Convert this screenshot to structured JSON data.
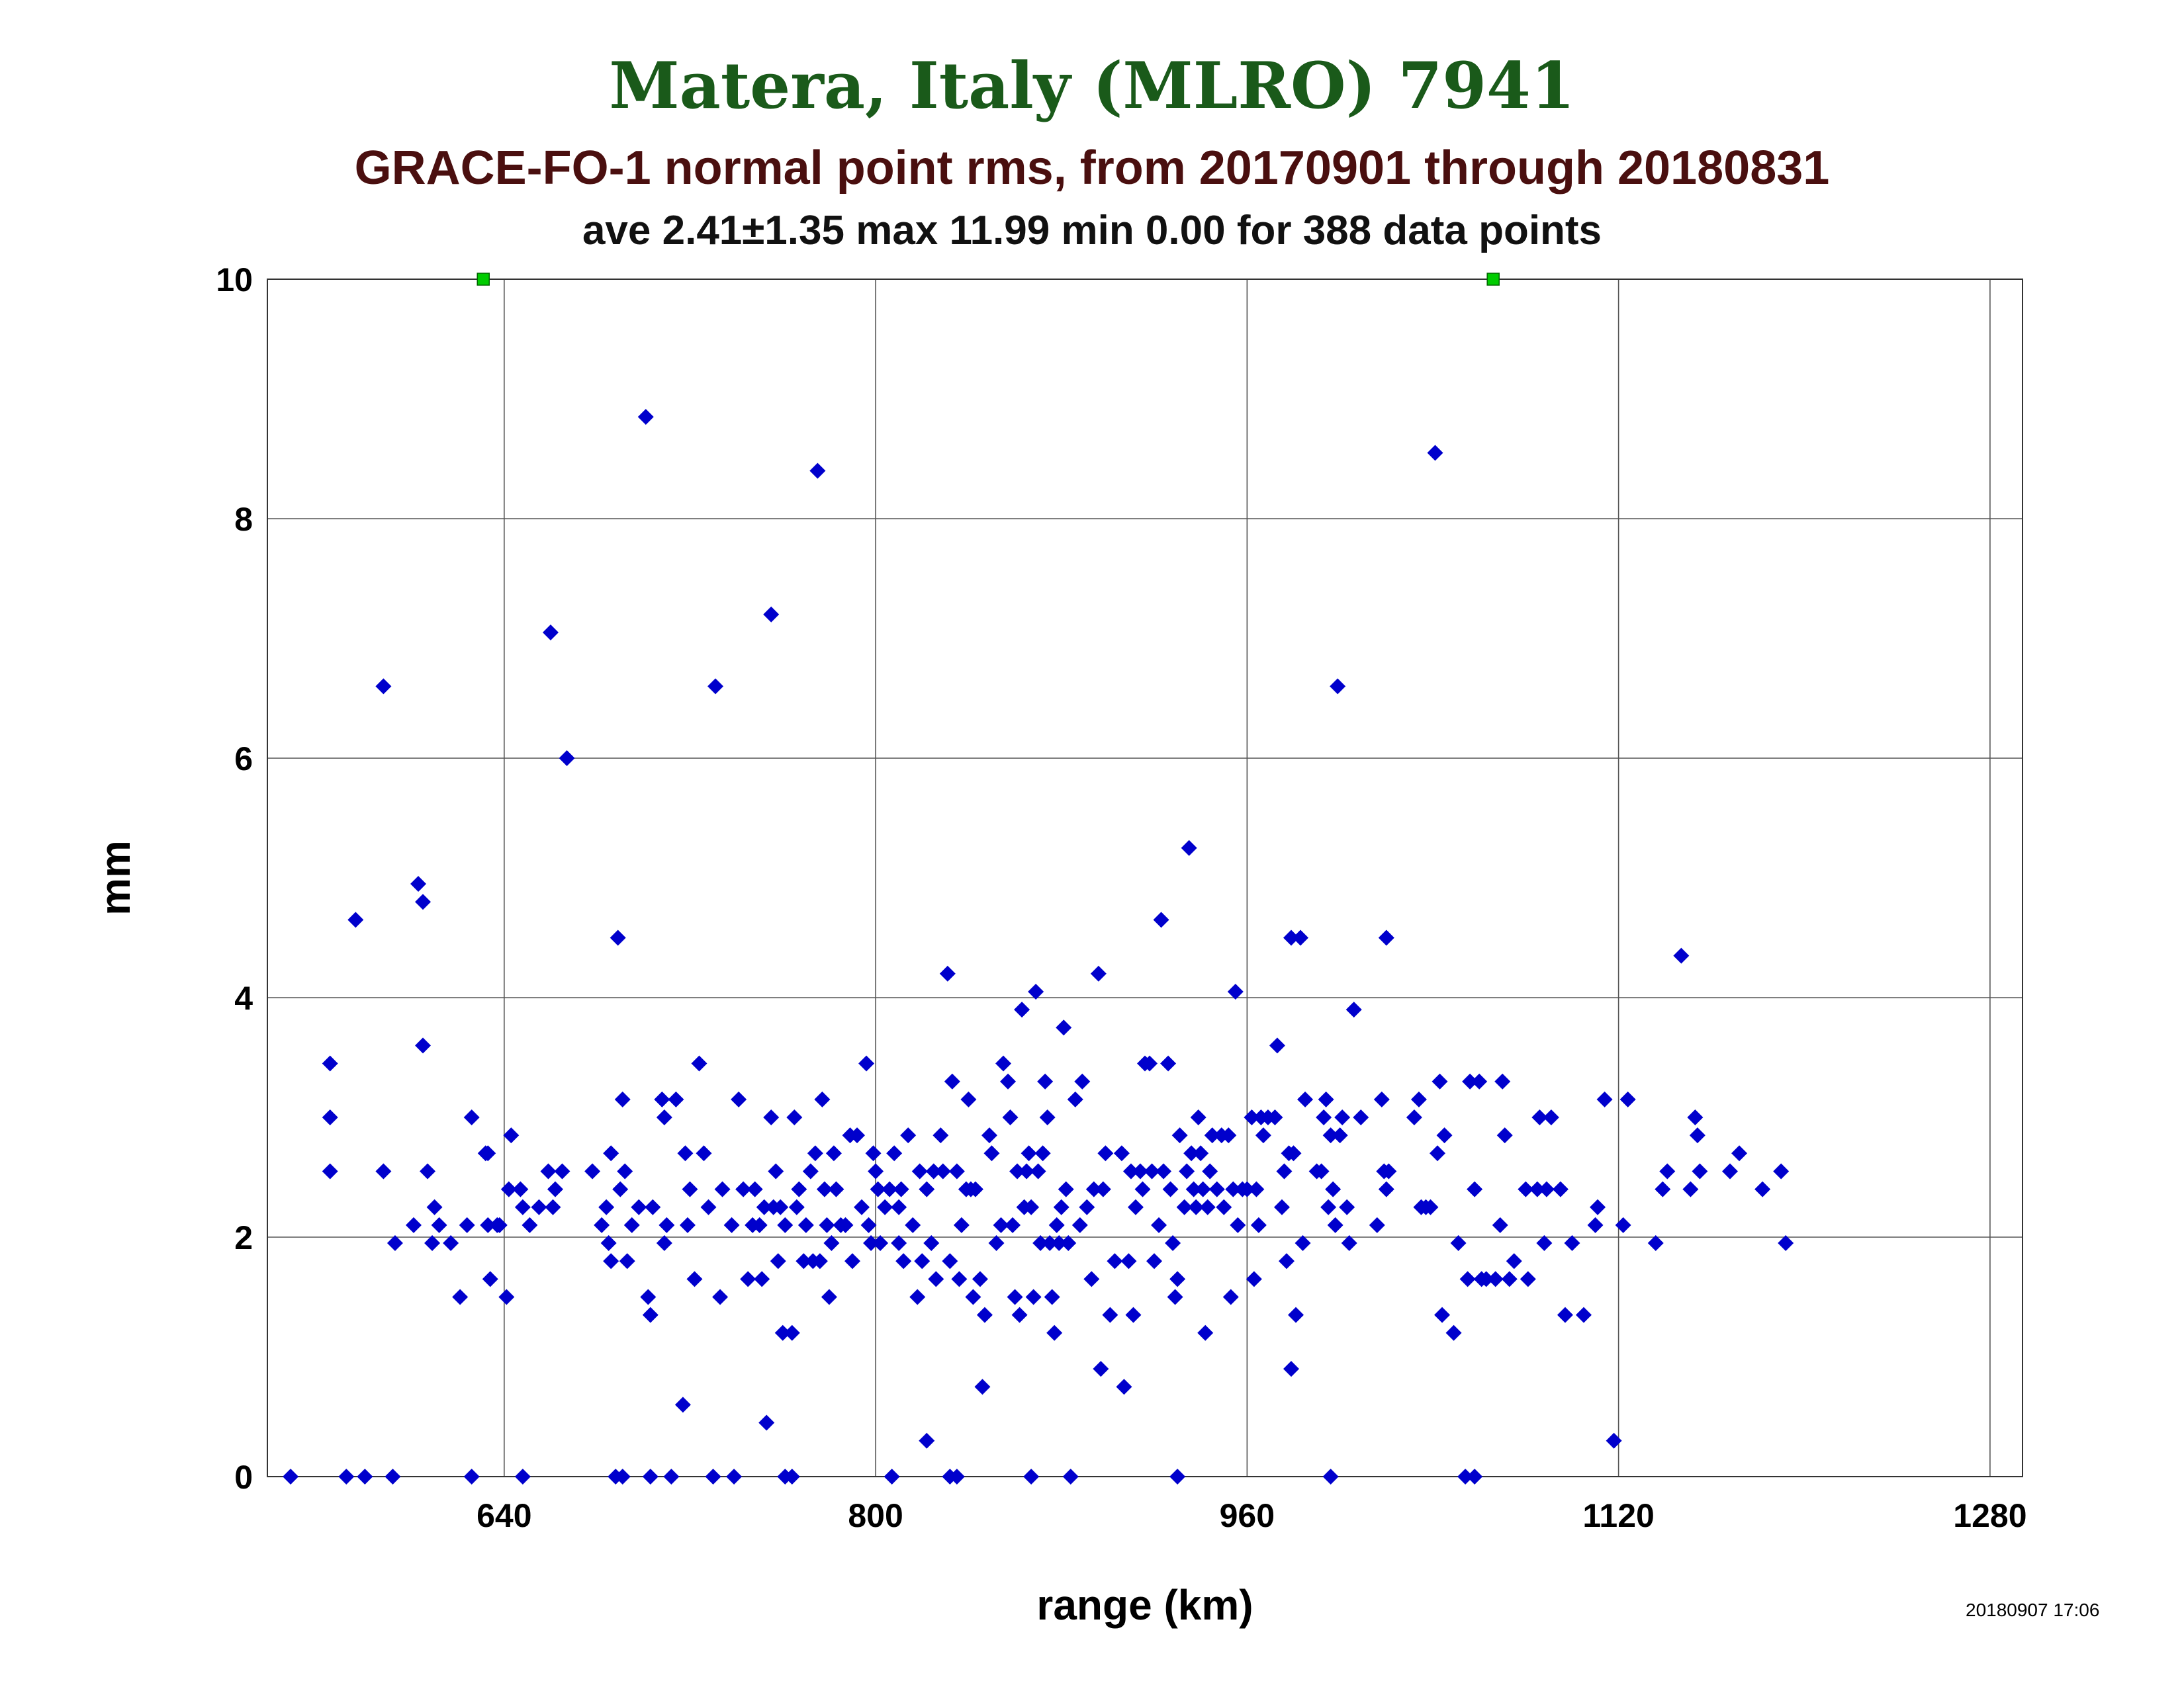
{
  "header": {
    "title": "Matera, Italy (MLRO) 7941",
    "subtitle": "GRACE-FO-1 normal point rms, from 20170901 through 20180831",
    "stats": "ave 2.41±1.35 max 11.99 min 0.00 for 388 data points"
  },
  "footer": {
    "timestamp": "20180907 17:06"
  },
  "chart_data": {
    "type": "scatter",
    "title": "Matera, Italy (MLRO) 7941",
    "subtitle": "GRACE-FO-1 normal point rms, from 20170901 through 20180831",
    "xlabel": "range (km)",
    "ylabel": "mm",
    "xlim": [
      538,
      1294
    ],
    "ylim": [
      0,
      10
    ],
    "xticks": [
      640,
      800,
      960,
      1120,
      1280
    ],
    "yticks": [
      0,
      2,
      4,
      6,
      8,
      10
    ],
    "xtick_labels": [
      "640",
      "800",
      "960",
      "1120",
      "1280"
    ],
    "ytick_labels": [
      "0",
      "2",
      "4",
      "6",
      "8",
      "10"
    ],
    "grid": true,
    "colors": {
      "points": "#0000cc",
      "clipped": "#00cc00",
      "grid": "#555555"
    },
    "clipped_points": [
      {
        "x": 631,
        "y": 10
      },
      {
        "x": 1066,
        "y": 10
      }
    ],
    "points": [
      [
        548,
        0
      ],
      [
        572,
        0
      ],
      [
        580,
        0
      ],
      [
        592,
        0
      ],
      [
        626,
        0
      ],
      [
        648,
        0
      ],
      [
        688,
        0
      ],
      [
        691,
        0
      ],
      [
        703,
        0
      ],
      [
        712,
        0
      ],
      [
        730,
        0
      ],
      [
        739,
        0
      ],
      [
        761,
        0
      ],
      [
        764,
        0
      ],
      [
        807,
        0
      ],
      [
        832,
        0
      ],
      [
        835,
        0
      ],
      [
        867,
        0
      ],
      [
        884,
        0
      ],
      [
        930,
        0
      ],
      [
        996,
        0
      ],
      [
        1054,
        0
      ],
      [
        1058,
        0
      ],
      [
        565,
        3.45
      ],
      [
        565,
        3.0
      ],
      [
        565,
        2.55
      ],
      [
        588,
        6.6
      ],
      [
        576,
        4.65
      ],
      [
        588,
        2.55
      ],
      [
        593,
        1.95
      ],
      [
        601,
        2.1
      ],
      [
        603,
        4.95
      ],
      [
        605,
        4.8
      ],
      [
        605,
        3.6
      ],
      [
        607,
        2.55
      ],
      [
        609,
        1.95
      ],
      [
        610,
        2.25
      ],
      [
        612,
        2.1
      ],
      [
        617,
        1.95
      ],
      [
        621,
        1.5
      ],
      [
        624,
        2.1
      ],
      [
        626,
        3.0
      ],
      [
        632,
        2.7
      ],
      [
        633,
        2.7
      ],
      [
        634,
        1.65
      ],
      [
        633,
        2.1
      ],
      [
        637,
        2.1
      ],
      [
        638,
        2.1
      ],
      [
        641,
        1.5
      ],
      [
        642,
        2.4
      ],
      [
        643,
        2.85
      ],
      [
        647,
        2.4
      ],
      [
        648,
        2.25
      ],
      [
        651,
        2.1
      ],
      [
        655,
        2.25
      ],
      [
        659,
        2.55
      ],
      [
        660,
        7.05
      ],
      [
        661,
        2.25
      ],
      [
        662,
        2.4
      ],
      [
        665,
        2.55
      ],
      [
        667,
        6.0
      ],
      [
        678,
        2.55
      ],
      [
        682,
        2.1
      ],
      [
        684,
        2.25
      ],
      [
        685,
        1.95
      ],
      [
        686,
        1.8
      ],
      [
        686,
        2.7
      ],
      [
        689,
        4.5
      ],
      [
        690,
        2.4
      ],
      [
        691,
        3.15
      ],
      [
        692,
        2.55
      ],
      [
        693,
        1.8
      ],
      [
        695,
        2.1
      ],
      [
        698,
        2.25
      ],
      [
        701,
        8.85
      ],
      [
        702,
        1.5
      ],
      [
        703,
        1.35
      ],
      [
        704,
        2.25
      ],
      [
        708,
        3.15
      ],
      [
        709,
        3.0
      ],
      [
        710,
        2.1
      ],
      [
        709,
        1.95
      ],
      [
        714,
        3.15
      ],
      [
        717,
        0.6
      ],
      [
        718,
        2.7
      ],
      [
        719,
        2.1
      ],
      [
        720,
        2.4
      ],
      [
        722,
        1.65
      ],
      [
        724,
        3.45
      ],
      [
        726,
        2.7
      ],
      [
        728,
        2.25
      ],
      [
        731,
        6.6
      ],
      [
        733,
        1.5
      ],
      [
        734,
        2.4
      ],
      [
        738,
        2.1
      ],
      [
        741,
        3.15
      ],
      [
        743,
        2.4
      ],
      [
        745,
        1.65
      ],
      [
        747,
        2.1
      ],
      [
        748,
        2.4
      ],
      [
        750,
        2.1
      ],
      [
        751,
        1.65
      ],
      [
        752,
        2.25
      ],
      [
        753,
        0.45
      ],
      [
        755,
        7.2
      ],
      [
        755,
        3.0
      ],
      [
        756,
        2.25
      ],
      [
        757,
        2.55
      ],
      [
        758,
        1.8
      ],
      [
        759,
        2.25
      ],
      [
        760,
        1.2
      ],
      [
        761,
        2.1
      ],
      [
        764,
        1.2
      ],
      [
        765,
        3.0
      ],
      [
        766,
        2.25
      ],
      [
        767,
        2.4
      ],
      [
        769,
        1.8
      ],
      [
        770,
        2.1
      ],
      [
        772,
        2.55
      ],
      [
        773,
        1.8
      ],
      [
        774,
        2.7
      ],
      [
        775,
        8.4
      ],
      [
        776,
        1.8
      ],
      [
        777,
        3.15
      ],
      [
        778,
        2.4
      ],
      [
        779,
        2.1
      ],
      [
        780,
        1.5
      ],
      [
        781,
        1.95
      ],
      [
        782,
        2.7
      ],
      [
        783,
        2.4
      ],
      [
        785,
        2.1
      ],
      [
        787,
        2.1
      ],
      [
        789,
        2.85
      ],
      [
        790,
        1.8
      ],
      [
        792,
        2.85
      ],
      [
        794,
        2.25
      ],
      [
        796,
        3.45
      ],
      [
        797,
        2.1
      ],
      [
        798,
        1.95
      ],
      [
        799,
        2.7
      ],
      [
        800,
        2.55
      ],
      [
        801,
        2.4
      ],
      [
        802,
        1.95
      ],
      [
        804,
        2.25
      ],
      [
        806,
        2.4
      ],
      [
        808,
        2.7
      ],
      [
        810,
        2.25
      ],
      [
        810,
        1.95
      ],
      [
        811,
        2.4
      ],
      [
        812,
        1.8
      ],
      [
        814,
        2.85
      ],
      [
        816,
        2.1
      ],
      [
        818,
        1.5
      ],
      [
        819,
        2.55
      ],
      [
        820,
        1.8
      ],
      [
        822,
        0.3
      ],
      [
        822,
        2.4
      ],
      [
        824,
        1.95
      ],
      [
        825,
        2.55
      ],
      [
        826,
        1.65
      ],
      [
        828,
        2.85
      ],
      [
        829,
        2.55
      ],
      [
        831,
        4.2
      ],
      [
        832,
        1.8
      ],
      [
        833,
        3.3
      ],
      [
        835,
        2.55
      ],
      [
        836,
        1.65
      ],
      [
        837,
        2.1
      ],
      [
        839,
        2.4
      ],
      [
        840,
        3.15
      ],
      [
        841,
        2.4
      ],
      [
        842,
        1.5
      ],
      [
        843,
        2.4
      ],
      [
        845,
        1.65
      ],
      [
        846,
        0.75
      ],
      [
        847,
        1.35
      ],
      [
        849,
        2.85
      ],
      [
        850,
        2.7
      ],
      [
        852,
        1.95
      ],
      [
        854,
        2.1
      ],
      [
        855,
        3.45
      ],
      [
        857,
        3.3
      ],
      [
        858,
        3.0
      ],
      [
        859,
        2.1
      ],
      [
        860,
        1.5
      ],
      [
        861,
        2.55
      ],
      [
        862,
        1.35
      ],
      [
        863,
        3.9
      ],
      [
        864,
        2.25
      ],
      [
        865,
        2.55
      ],
      [
        866,
        2.7
      ],
      [
        867,
        2.25
      ],
      [
        868,
        1.5
      ],
      [
        869,
        4.05
      ],
      [
        870,
        2.55
      ],
      [
        871,
        1.95
      ],
      [
        872,
        2.7
      ],
      [
        873,
        3.3
      ],
      [
        874,
        3.0
      ],
      [
        875,
        1.95
      ],
      [
        876,
        1.5
      ],
      [
        877,
        1.2
      ],
      [
        878,
        2.1
      ],
      [
        879,
        1.95
      ],
      [
        880,
        2.25
      ],
      [
        881,
        3.75
      ],
      [
        882,
        2.4
      ],
      [
        883,
        1.95
      ],
      [
        886,
        3.15
      ],
      [
        888,
        2.1
      ],
      [
        889,
        3.3
      ],
      [
        891,
        2.25
      ],
      [
        893,
        1.65
      ],
      [
        894,
        2.4
      ],
      [
        896,
        4.2
      ],
      [
        897,
        0.9
      ],
      [
        898,
        2.4
      ],
      [
        899,
        2.7
      ],
      [
        901,
        1.35
      ],
      [
        903,
        1.8
      ],
      [
        906,
        2.7
      ],
      [
        907,
        0.75
      ],
      [
        909,
        1.8
      ],
      [
        910,
        2.55
      ],
      [
        911,
        1.35
      ],
      [
        912,
        2.25
      ],
      [
        914,
        2.55
      ],
      [
        915,
        2.4
      ],
      [
        916,
        3.45
      ],
      [
        918,
        3.45
      ],
      [
        919,
        2.55
      ],
      [
        920,
        1.8
      ],
      [
        922,
        2.1
      ],
      [
        923,
        4.65
      ],
      [
        924,
        2.55
      ],
      [
        926,
        3.45
      ],
      [
        927,
        2.4
      ],
      [
        928,
        1.95
      ],
      [
        929,
        1.5
      ],
      [
        930,
        1.65
      ],
      [
        931,
        2.85
      ],
      [
        933,
        2.25
      ],
      [
        934,
        2.55
      ],
      [
        935,
        5.25
      ],
      [
        936,
        2.7
      ],
      [
        937,
        2.4
      ],
      [
        938,
        2.25
      ],
      [
        939,
        3.0
      ],
      [
        940,
        2.7
      ],
      [
        941,
        2.4
      ],
      [
        942,
        1.2
      ],
      [
        943,
        2.25
      ],
      [
        944,
        2.55
      ],
      [
        945,
        2.85
      ],
      [
        947,
        2.4
      ],
      [
        949,
        2.85
      ],
      [
        950,
        2.25
      ],
      [
        952,
        2.85
      ],
      [
        953,
        1.5
      ],
      [
        954,
        2.4
      ],
      [
        955,
        4.05
      ],
      [
        956,
        2.1
      ],
      [
        958,
        2.4
      ],
      [
        960,
        2.4
      ],
      [
        962,
        3.0
      ],
      [
        963,
        1.65
      ],
      [
        964,
        2.4
      ],
      [
        965,
        2.1
      ],
      [
        966,
        3.0
      ],
      [
        967,
        2.85
      ],
      [
        969,
        3.0
      ],
      [
        972,
        3.0
      ],
      [
        973,
        3.6
      ],
      [
        975,
        2.25
      ],
      [
        976,
        2.55
      ],
      [
        977,
        1.8
      ],
      [
        978,
        2.7
      ],
      [
        979,
        4.5
      ],
      [
        979,
        0.9
      ],
      [
        980,
        2.7
      ],
      [
        981,
        1.35
      ],
      [
        983,
        4.5
      ],
      [
        984,
        1.95
      ],
      [
        985,
        3.15
      ],
      [
        990,
        2.55
      ],
      [
        992,
        2.55
      ],
      [
        993,
        3.0
      ],
      [
        994,
        3.15
      ],
      [
        995,
        2.25
      ],
      [
        996,
        2.85
      ],
      [
        997,
        2.4
      ],
      [
        998,
        2.1
      ],
      [
        999,
        6.6
      ],
      [
        1000,
        2.85
      ],
      [
        1001,
        3.0
      ],
      [
        1003,
        2.25
      ],
      [
        1004,
        1.95
      ],
      [
        1006,
        3.9
      ],
      [
        1009,
        3.0
      ],
      [
        1016,
        2.1
      ],
      [
        1018,
        3.15
      ],
      [
        1019,
        2.55
      ],
      [
        1020,
        2.4
      ],
      [
        1020,
        4.5
      ],
      [
        1021,
        2.55
      ],
      [
        1032,
        3.0
      ],
      [
        1034,
        3.15
      ],
      [
        1035,
        2.25
      ],
      [
        1037,
        2.25
      ],
      [
        1039,
        2.25
      ],
      [
        1041,
        8.55
      ],
      [
        1042,
        2.7
      ],
      [
        1043,
        3.3
      ],
      [
        1044,
        1.35
      ],
      [
        1045,
        2.85
      ],
      [
        1049,
        1.2
      ],
      [
        1051,
        1.95
      ],
      [
        1055,
        1.65
      ],
      [
        1056,
        3.3
      ],
      [
        1058,
        2.4
      ],
      [
        1060,
        3.3
      ],
      [
        1061,
        1.65
      ],
      [
        1063,
        1.65
      ],
      [
        1067,
        1.65
      ],
      [
        1069,
        2.1
      ],
      [
        1070,
        3.3
      ],
      [
        1071,
        2.85
      ],
      [
        1073,
        1.65
      ],
      [
        1075,
        1.8
      ],
      [
        1080,
        2.4
      ],
      [
        1081,
        1.65
      ],
      [
        1085,
        2.4
      ],
      [
        1086,
        3.0
      ],
      [
        1088,
        1.95
      ],
      [
        1089,
        2.4
      ],
      [
        1091,
        3.0
      ],
      [
        1095,
        2.4
      ],
      [
        1097,
        1.35
      ],
      [
        1100,
        1.95
      ],
      [
        1105,
        1.35
      ],
      [
        1110,
        2.1
      ],
      [
        1111,
        2.25
      ],
      [
        1114,
        3.15
      ],
      [
        1118,
        0.3
      ],
      [
        1122,
        2.1
      ],
      [
        1124,
        3.15
      ],
      [
        1136,
        1.95
      ],
      [
        1139,
        2.4
      ],
      [
        1141,
        2.55
      ],
      [
        1147,
        4.35
      ],
      [
        1151,
        2.4
      ],
      [
        1153,
        3.0
      ],
      [
        1154,
        2.85
      ],
      [
        1155,
        2.55
      ],
      [
        1168,
        2.55
      ],
      [
        1172,
        2.7
      ],
      [
        1182,
        2.4
      ],
      [
        1190,
        2.55
      ],
      [
        1192,
        1.95
      ]
    ]
  }
}
